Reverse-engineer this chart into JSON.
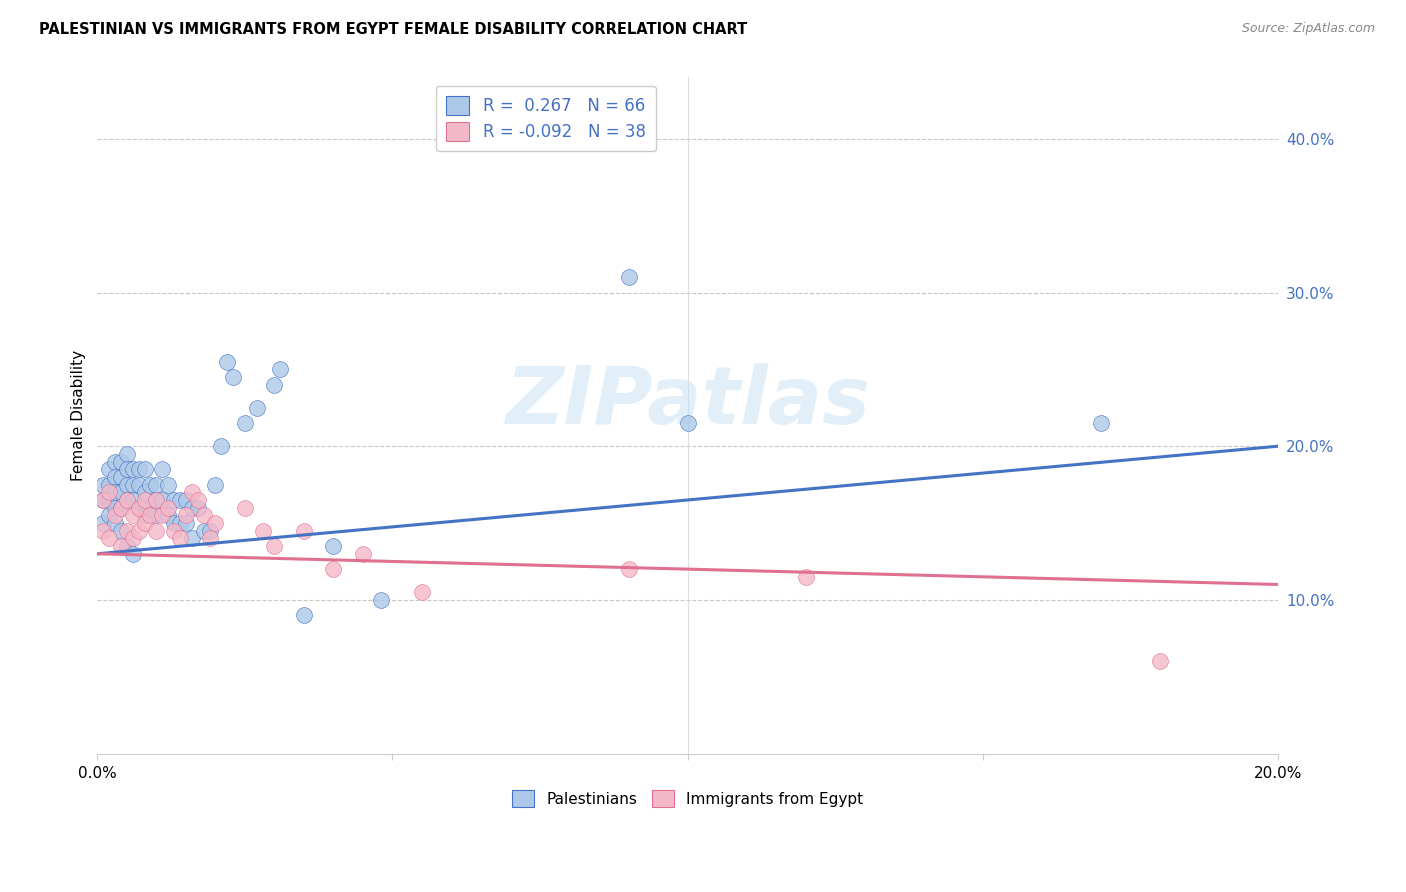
{
  "title": "PALESTINIAN VS IMMIGRANTS FROM EGYPT FEMALE DISABILITY CORRELATION CHART",
  "source": "Source: ZipAtlas.com",
  "ylabel": "Female Disability",
  "watermark": "ZIPatlas",
  "xlim": [
    0.0,
    0.2
  ],
  "ylim": [
    0.0,
    0.44
  ],
  "xticks": [
    0.0,
    0.05,
    0.1,
    0.15,
    0.2
  ],
  "xtick_labels": [
    "0.0%",
    "",
    "",
    "",
    "20.0%"
  ],
  "yticks_right": [
    0.1,
    0.2,
    0.3,
    0.4
  ],
  "ytick_labels_right": [
    "10.0%",
    "20.0%",
    "30.0%",
    "40.0%"
  ],
  "pal_R": 0.267,
  "pal_N": 66,
  "egy_R": -0.092,
  "egy_N": 38,
  "pal_color": "#adc8e8",
  "egy_color": "#f5b8c8",
  "line_pal_color": "#4472c4",
  "line_egy_color": "#e07090",
  "legend_color": "#4472c4",
  "pal_line_start_y": 0.13,
  "pal_line_end_y": 0.2,
  "egy_line_start_y": 0.13,
  "egy_line_end_y": 0.11,
  "palestinians_x": [
    0.001,
    0.001,
    0.001,
    0.002,
    0.002,
    0.002,
    0.002,
    0.003,
    0.003,
    0.003,
    0.003,
    0.003,
    0.004,
    0.004,
    0.004,
    0.004,
    0.004,
    0.005,
    0.005,
    0.005,
    0.005,
    0.005,
    0.006,
    0.006,
    0.006,
    0.006,
    0.007,
    0.007,
    0.007,
    0.008,
    0.008,
    0.008,
    0.009,
    0.009,
    0.01,
    0.01,
    0.01,
    0.011,
    0.011,
    0.012,
    0.012,
    0.013,
    0.013,
    0.014,
    0.014,
    0.015,
    0.015,
    0.016,
    0.016,
    0.017,
    0.018,
    0.019,
    0.02,
    0.021,
    0.022,
    0.023,
    0.025,
    0.027,
    0.03,
    0.031,
    0.035,
    0.04,
    0.048,
    0.09,
    0.1,
    0.17
  ],
  "palestinians_y": [
    0.175,
    0.165,
    0.15,
    0.185,
    0.175,
    0.165,
    0.155,
    0.19,
    0.18,
    0.17,
    0.16,
    0.15,
    0.19,
    0.18,
    0.17,
    0.16,
    0.145,
    0.195,
    0.185,
    0.175,
    0.165,
    0.135,
    0.185,
    0.175,
    0.165,
    0.13,
    0.185,
    0.175,
    0.16,
    0.185,
    0.17,
    0.155,
    0.175,
    0.16,
    0.175,
    0.165,
    0.155,
    0.185,
    0.165,
    0.175,
    0.155,
    0.165,
    0.15,
    0.165,
    0.15,
    0.165,
    0.15,
    0.16,
    0.14,
    0.16,
    0.145,
    0.145,
    0.175,
    0.2,
    0.255,
    0.245,
    0.215,
    0.225,
    0.24,
    0.25,
    0.09,
    0.135,
    0.1,
    0.31,
    0.215,
    0.215
  ],
  "egypt_x": [
    0.001,
    0.001,
    0.002,
    0.002,
    0.003,
    0.004,
    0.004,
    0.005,
    0.005,
    0.006,
    0.006,
    0.007,
    0.007,
    0.008,
    0.008,
    0.009,
    0.01,
    0.01,
    0.011,
    0.012,
    0.013,
    0.014,
    0.015,
    0.016,
    0.017,
    0.018,
    0.019,
    0.02,
    0.025,
    0.028,
    0.03,
    0.035,
    0.04,
    0.045,
    0.055,
    0.09,
    0.12,
    0.18
  ],
  "egypt_y": [
    0.165,
    0.145,
    0.17,
    0.14,
    0.155,
    0.16,
    0.135,
    0.165,
    0.145,
    0.155,
    0.14,
    0.16,
    0.145,
    0.165,
    0.15,
    0.155,
    0.165,
    0.145,
    0.155,
    0.16,
    0.145,
    0.14,
    0.155,
    0.17,
    0.165,
    0.155,
    0.14,
    0.15,
    0.16,
    0.145,
    0.135,
    0.145,
    0.12,
    0.13,
    0.105,
    0.12,
    0.115,
    0.06
  ]
}
